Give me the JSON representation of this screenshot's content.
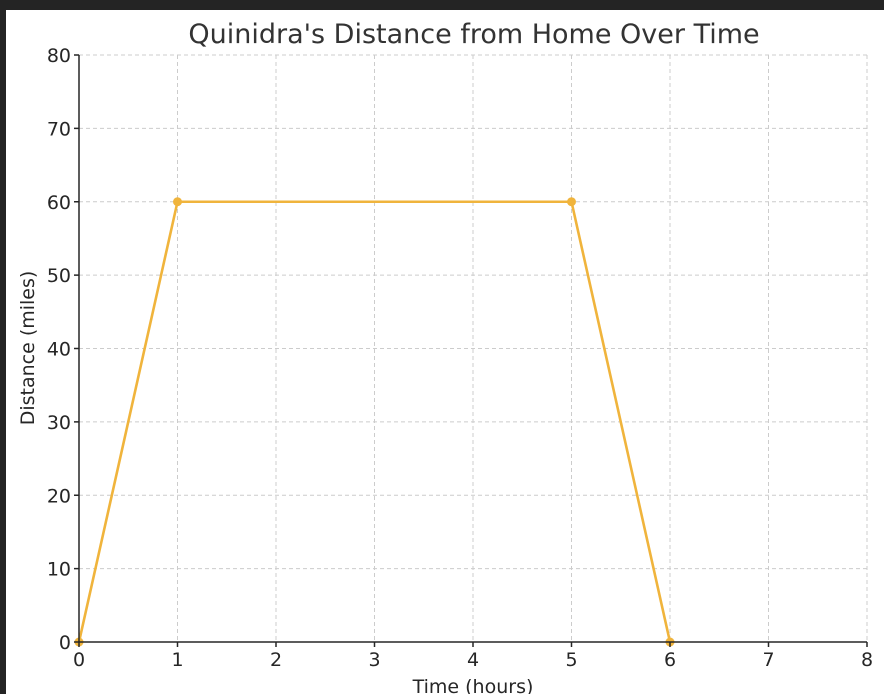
{
  "chart_data": {
    "type": "line",
    "title": "Quinidra's Distance from Home Over Time",
    "xlabel": "Time (hours)",
    "ylabel": "Distance (miles)",
    "xlim": [
      0,
      8
    ],
    "ylim": [
      0,
      80
    ],
    "x_ticks": [
      0,
      1,
      2,
      3,
      4,
      5,
      6,
      7,
      8
    ],
    "y_ticks": [
      0,
      10,
      20,
      30,
      40,
      50,
      60,
      70,
      80
    ],
    "grid": true,
    "series": [
      {
        "color": "#f0b43c",
        "x": [
          0,
          1,
          5,
          6
        ],
        "y": [
          0,
          60,
          60,
          0
        ]
      }
    ]
  }
}
